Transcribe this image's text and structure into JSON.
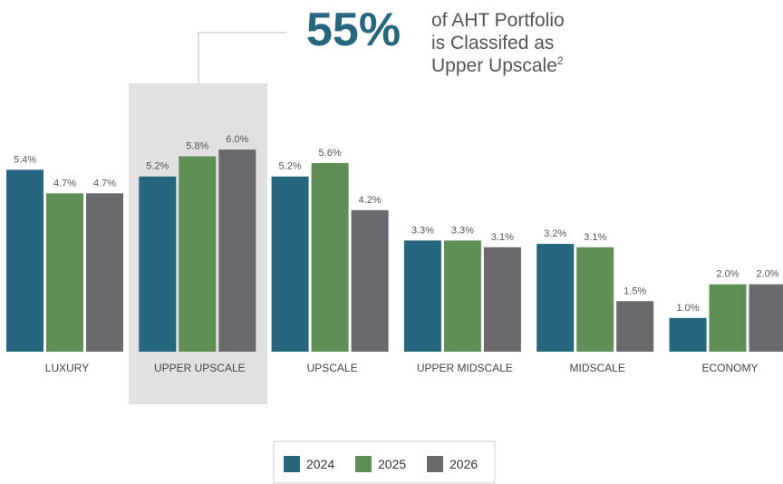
{
  "chart_data": {
    "type": "bar",
    "categories": [
      "LUXURY",
      "UPPER UPSCALE",
      "UPSCALE",
      "UPPER MIDSCALE",
      "MIDSCALE",
      "ECONOMY"
    ],
    "series": [
      {
        "name": "2024",
        "color": "#27667f",
        "values": [
          5.4,
          5.2,
          5.2,
          3.3,
          3.2,
          1.0
        ],
        "value_labels": [
          "5.4%",
          "5.2%",
          "5.2%",
          "3.3%",
          "3.2%",
          "1.0%"
        ]
      },
      {
        "name": "2025",
        "color": "#5f8f55",
        "values": [
          4.7,
          5.8,
          5.6,
          3.3,
          3.1,
          2.0
        ],
        "value_labels": [
          "4.7%",
          "5.8%",
          "5.6%",
          "3.3%",
          "3.1%",
          "2.0%"
        ]
      },
      {
        "name": "2026",
        "color": "#6a6a6e",
        "values": [
          4.7,
          6.0,
          4.2,
          3.1,
          1.5,
          2.0
        ],
        "value_labels": [
          "4.7%",
          "6.0%",
          "4.2%",
          "3.1%",
          "1.5%",
          "2.0%"
        ]
      }
    ],
    "ylim": [
      0,
      6
    ],
    "highlight_index": 1,
    "callout": {
      "value_label": "55%",
      "lines": [
        "of AHT Portfolio",
        "is Classifed as",
        "Upper Upscale"
      ],
      "footnote": "2"
    },
    "legend": "bottom"
  }
}
